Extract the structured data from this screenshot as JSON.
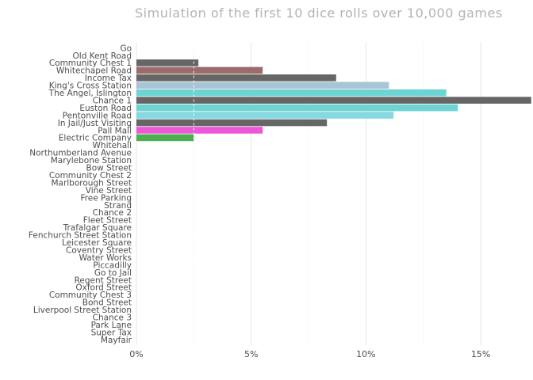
{
  "chart_data": {
    "type": "bar",
    "orientation": "horizontal",
    "title": "Simulation of the first 10 dice rolls over 10,000 games",
    "xlabel": "",
    "ylabel": "",
    "xlim": [
      0,
      17
    ],
    "x_ticks": [
      0,
      5,
      10,
      15
    ],
    "x_tick_labels": [
      "0%",
      "5%",
      "10%",
      "15%"
    ],
    "grid": "vertical",
    "reference_line": 2.5,
    "categories": [
      "Go",
      "Old Kent Road",
      "Community Chest 1",
      "Whitechapel Road",
      "Income Tax",
      "King's Cross Station",
      "The Angel, Islington",
      "Chance 1",
      "Euston Road",
      "Pentonville Road",
      "In Jail/Just Visiting",
      "Pall Mall",
      "Electric Company",
      "Whitehall",
      "Northumberland Avenue",
      "Marylebone Station",
      "Bow Street",
      "Community Chest 2",
      "Marlborough Street",
      "Vine Street",
      "Free Parking",
      "Strand",
      "Chance 2",
      "Fleet Street",
      "Trafalgar Square",
      "Fenchurch Street Station",
      "Leicester Square",
      "Coventry Street",
      "Water Works",
      "Piccadilly",
      "Go to Jail",
      "Regent Street",
      "Oxford Street",
      "Community Chest 3",
      "Bond Street",
      "Liverpool Street Station",
      "Chance 3",
      "Park Lane",
      "Super Tax",
      "Mayfair"
    ],
    "values": [
      0,
      0,
      2.7,
      5.5,
      8.7,
      11.0,
      13.5,
      17.2,
      14.0,
      11.2,
      8.3,
      5.5,
      2.5,
      0,
      0,
      0,
      0,
      0,
      0,
      0,
      0,
      0,
      0,
      0,
      0,
      0,
      0,
      0,
      0,
      0,
      0,
      0,
      0,
      0,
      0,
      0,
      0,
      0,
      0,
      0
    ],
    "colors": [
      "#666666",
      "#666666",
      "#666666",
      "#9c6b6b",
      "#666666",
      "#aac3d6",
      "#6dd3d3",
      "#666666",
      "#6dd3d3",
      "#87d8e0",
      "#666666",
      "#ee58d8",
      "#4caf50",
      "#666666",
      "#666666",
      "#666666",
      "#666666",
      "#666666",
      "#666666",
      "#666666",
      "#666666",
      "#666666",
      "#666666",
      "#666666",
      "#666666",
      "#666666",
      "#666666",
      "#666666",
      "#666666",
      "#666666",
      "#666666",
      "#666666",
      "#666666",
      "#666666",
      "#666666",
      "#666666",
      "#666666",
      "#666666",
      "#666666",
      "#666666"
    ]
  }
}
